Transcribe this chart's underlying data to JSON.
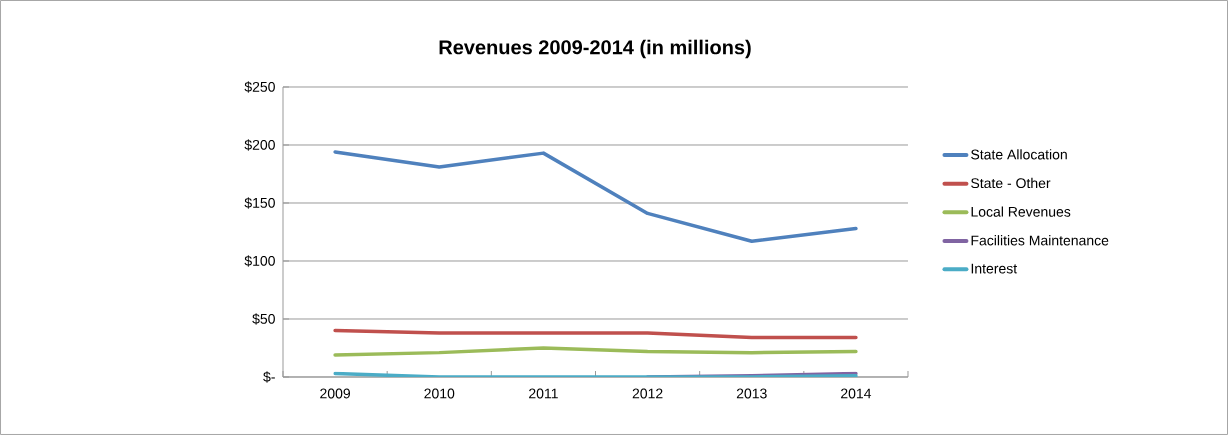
{
  "chart_data": {
    "type": "line",
    "title": "Revenues 2009-2014 (in millions)",
    "categories": [
      "2009",
      "2010",
      "2011",
      "2012",
      "2013",
      "2014"
    ],
    "series": [
      {
        "name": "State Allocation",
        "color": "#4f81bd",
        "values": [
          194,
          181,
          193,
          141,
          117,
          128
        ]
      },
      {
        "name": "State - Other",
        "color": "#c0504d",
        "values": [
          40,
          38,
          38,
          38,
          34,
          34
        ]
      },
      {
        "name": "Local Revenues",
        "color": "#9bbb59",
        "values": [
          19,
          21,
          25,
          22,
          21,
          22
        ]
      },
      {
        "name": "Facilities Maintenance",
        "color": "#8064a2",
        "values": [
          null,
          null,
          null,
          0,
          1,
          3
        ]
      },
      {
        "name": "Interest",
        "color": "#4bacc6",
        "values": [
          3,
          0,
          0,
          0,
          0,
          1
        ]
      }
    ],
    "ylim": [
      0,
      250
    ],
    "yticks": [
      {
        "value": 0,
        "label": "$-"
      },
      {
        "value": 50,
        "label": "$50"
      },
      {
        "value": 100,
        "label": "$100"
      },
      {
        "value": 150,
        "label": "$150"
      },
      {
        "value": 200,
        "label": "$200"
      },
      {
        "value": 250,
        "label": "$250"
      }
    ],
    "grid": "y",
    "legend": "right",
    "marker": "none",
    "line_style": "solid"
  }
}
